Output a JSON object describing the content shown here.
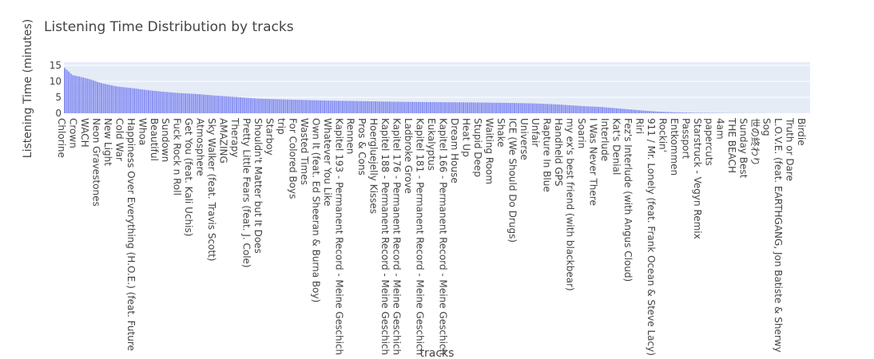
{
  "chart_data": {
    "type": "bar",
    "title": "Listening Time Distribution by tracks",
    "xlabel": "tracks",
    "ylabel": "Listening Time (minutes)",
    "ylim": [
      0,
      16
    ],
    "yticks": [
      0,
      5,
      10,
      15
    ],
    "colors": {
      "bar": "#8c94f2",
      "plot_bg": "#e5ecf6",
      "grid": "#ffffff",
      "text": "#444444"
    },
    "bar_count": 365,
    "labeled_categories": [
      "Chlorine",
      "Crown",
      "WACH",
      "Neon Gravestones",
      "New Light",
      "Cold War",
      "Happiness Over Everything (H.O.E.) (feat. Future",
      "Whoa",
      "Beautiful",
      "Sundown",
      "Fuck Rock n Roll",
      "Get You (feat. Kali Uchis)",
      "Atmosphere",
      "Sky Walker (feat. Travis Scott)",
      "AMAZING",
      "Therapy",
      "Pretty Little Fears (feat. J. Cole)",
      "Shouldn't Matter but It Does",
      "Starboy",
      "trip",
      "For Colored Boys",
      "Wasted Times",
      "Own It (feat. Ed Sheeran & Burna Boy)",
      "Whatever You Like",
      "Kapitel 193 - Permanent Record - Meine Geschich",
      "Rennen",
      "Pros & Cons",
      "Hoergluejelly Kisses",
      "Kapitel 188 - Permanent Record - Meine Geschich",
      "Kapitel 176 - Permanent Record - Meine Geschich",
      "Ladbroke Grove",
      "Kapitel 181 - Permanent Record - Meine Geschich",
      "Eukalyptus",
      "Kapitel 166 - Permanent Record - Meine Geschich",
      "Dream House",
      "Heat Up",
      "Stupid Deep",
      "Waiting Room",
      "Shake",
      "ICE (We Should Do Drugs)",
      "Universe",
      "Unfair",
      "Rapture In Blue",
      "Handheld GPS",
      "my ex's best friend (with blackbear)",
      "Soarin",
      "I Was Never There",
      "Interlude",
      "Kat's Denial",
      "Fez's Interlude (with Angus Cloud)",
      "Riri",
      "911 / Mr. Lonely (feat. Frank Ocean & Steve Lacy)",
      "Rockin'",
      "Entkommen",
      "Passport",
      "Starstruck - Vegyn Remix",
      "papercuts",
      "4am",
      "THE BEACH",
      "Sunday Best",
      "世の終わり",
      "Sog",
      "L.O.V.E. (feat. EARTHGANG, Jon Batiste & Sherwy",
      "Truth or Dare",
      "Birdie"
    ],
    "curve": [
      [
        0,
        14.2
      ],
      [
        0.005,
        13.2
      ],
      [
        0.01,
        12.0
      ],
      [
        0.02,
        11.5
      ],
      [
        0.035,
        10.6
      ],
      [
        0.05,
        9.4
      ],
      [
        0.07,
        8.4
      ],
      [
        0.09,
        7.9
      ],
      [
        0.11,
        7.3
      ],
      [
        0.13,
        6.8
      ],
      [
        0.15,
        6.4
      ],
      [
        0.18,
        6.0
      ],
      [
        0.2,
        5.6
      ],
      [
        0.23,
        5.1
      ],
      [
        0.26,
        4.6
      ],
      [
        0.3,
        4.3
      ],
      [
        0.35,
        4.0
      ],
      [
        0.4,
        3.8
      ],
      [
        0.45,
        3.6
      ],
      [
        0.5,
        3.5
      ],
      [
        0.55,
        3.4
      ],
      [
        0.6,
        3.25
      ],
      [
        0.63,
        3.1
      ],
      [
        0.66,
        2.8
      ],
      [
        0.68,
        2.5
      ],
      [
        0.7,
        2.2
      ],
      [
        0.72,
        2.0
      ],
      [
        0.74,
        1.6
      ],
      [
        0.76,
        1.2
      ],
      [
        0.78,
        0.8
      ],
      [
        0.8,
        0.5
      ],
      [
        0.82,
        0.3
      ],
      [
        0.85,
        0.15
      ],
      [
        0.9,
        0.06
      ],
      [
        0.95,
        0.03
      ],
      [
        1.0,
        0.02
      ]
    ]
  }
}
